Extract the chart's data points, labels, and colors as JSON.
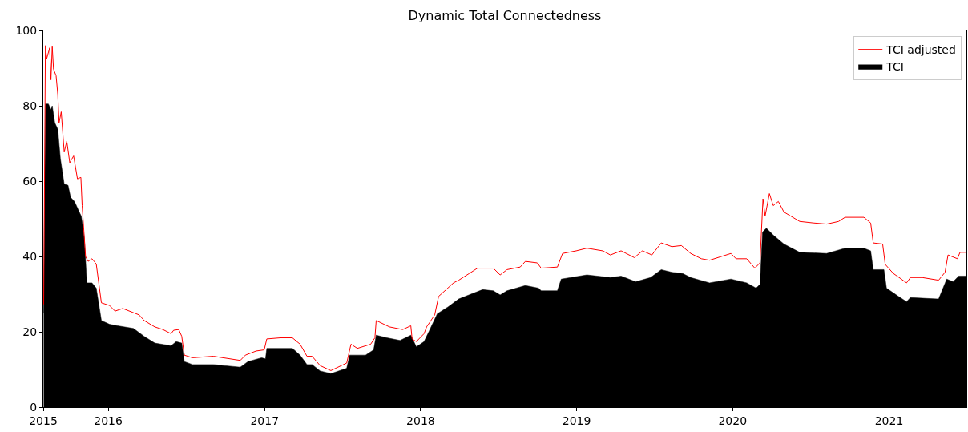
{
  "chart_data": {
    "type": "area",
    "title": "Dynamic Total Connectedness",
    "xlim": [
      "2015-08-02",
      "2021-07-01"
    ],
    "xticks": [
      {
        "value": "2015-08-02",
        "label": "2015"
      },
      {
        "value": "2016-01-01",
        "label": "2016"
      },
      {
        "value": "2017-01-01",
        "label": "2017"
      },
      {
        "value": "2018-01-01",
        "label": "2018"
      },
      {
        "value": "2019-01-01",
        "label": "2019"
      },
      {
        "value": "2020-01-01",
        "label": "2020"
      },
      {
        "value": "2021-01-01",
        "label": "2021"
      }
    ],
    "ylim": [
      0,
      100
    ],
    "yticks": [
      0,
      20,
      40,
      60,
      80,
      100
    ],
    "legend": "top right",
    "series": [
      {
        "name": "TCI adjusted",
        "type": "line",
        "color": "#ff0000",
        "line_style": "solid",
        "x": [
          "2015-08-03",
          "2015-08-07",
          "2015-08-10",
          "2015-08-17",
          "2015-08-20",
          "2015-08-23",
          "2015-08-26",
          "2015-09-01",
          "2015-09-05",
          "2015-09-08",
          "2015-09-13",
          "2015-09-20",
          "2015-09-26",
          "2015-10-03",
          "2015-10-12",
          "2015-10-21",
          "2015-10-29",
          "2015-11-01",
          "2015-11-09",
          "2015-11-15",
          "2015-11-24",
          "2015-12-04",
          "2015-12-16",
          "2016-01-04",
          "2016-01-17",
          "2016-02-04",
          "2016-03-13",
          "2016-03-25",
          "2016-04-19",
          "2016-05-08",
          "2016-05-27",
          "2016-06-02",
          "2016-06-14",
          "2016-06-21",
          "2016-06-27",
          "2016-07-16",
          "2016-09-03",
          "2016-11-05",
          "2016-11-17",
          "2016-12-12",
          "2016-12-31",
          "2017-01-06",
          "2017-02-07",
          "2017-03-07",
          "2017-03-25",
          "2017-04-10",
          "2017-04-22",
          "2017-05-11",
          "2017-06-05",
          "2017-07-12",
          "2017-07-22",
          "2017-08-06",
          "2017-09-06",
          "2017-09-16",
          "2017-09-19",
          "2017-10-20",
          "2017-11-20",
          "2017-12-09",
          "2017-12-12",
          "2017-12-22",
          "2018-01-09",
          "2018-01-15",
          "2018-02-03",
          "2018-02-12",
          "2018-03-19",
          "2018-03-31",
          "2018-04-25",
          "2018-05-14",
          "2018-06-20",
          "2018-07-06",
          "2018-07-22",
          "2018-08-22",
          "2018-09-03",
          "2018-10-01",
          "2018-10-10",
          "2018-11-17",
          "2018-11-29",
          "2018-12-31",
          "2019-01-25",
          "2019-03-03",
          "2019-03-21",
          "2019-04-15",
          "2019-05-16",
          "2019-06-04",
          "2019-06-26",
          "2019-07-18",
          "2019-08-12",
          "2019-09-03",
          "2019-09-25",
          "2019-10-20",
          "2019-11-08",
          "2019-12-28",
          "2020-01-09",
          "2020-02-03",
          "2020-02-22",
          "2020-03-05",
          "2020-03-12",
          "2020-03-17",
          "2020-03-27",
          "2020-04-05",
          "2020-04-17",
          "2020-04-30",
          "2020-06-06",
          "2020-07-08",
          "2020-08-08",
          "2020-09-05",
          "2020-09-20",
          "2020-11-03",
          "2020-11-19",
          "2020-11-25",
          "2020-12-17",
          "2020-12-23",
          "2021-01-11",
          "2021-02-11",
          "2021-02-20",
          "2021-03-20",
          "2021-04-27",
          "2021-05-12",
          "2021-05-19",
          "2021-06-10",
          "2021-06-16",
          "2021-07-01"
        ],
        "values": [
          27.3,
          96,
          92.5,
          95.4,
          86.9,
          95.7,
          89.7,
          88,
          83,
          75.5,
          78.4,
          67.7,
          70.6,
          64.9,
          66.7,
          60.6,
          61,
          53.5,
          40,
          38.7,
          39.4,
          38,
          27.7,
          27,
          25.5,
          26.2,
          24.5,
          23,
          21.3,
          20.6,
          19.5,
          20.4,
          20.6,
          18.8,
          13.8,
          13.1,
          13.5,
          12.4,
          13.8,
          14.9,
          15.2,
          18.1,
          18.4,
          18.4,
          16.7,
          13.5,
          13.5,
          11,
          9.7,
          11.7,
          16.7,
          15.6,
          16.7,
          18.4,
          23,
          21.3,
          20.6,
          21.6,
          18.1,
          17.4,
          19.5,
          21.3,
          24.5,
          29.4,
          33,
          33.7,
          35.5,
          36.9,
          36.9,
          35.1,
          36.5,
          37.2,
          38.7,
          38.3,
          36.9,
          37.2,
          40.8,
          41.5,
          42.2,
          41.5,
          40.4,
          41.5,
          39.7,
          41.5,
          40.4,
          43.6,
          42.6,
          42.9,
          40.8,
          39.4,
          39,
          40.8,
          39.4,
          39.4,
          36.9,
          38.3,
          55.3,
          50.7,
          56.7,
          53.5,
          54.6,
          51.8,
          49.3,
          48.9,
          48.6,
          49.3,
          50.4,
          50.4,
          48.9,
          43.6,
          43.3,
          37.9,
          35.5,
          33,
          34.4,
          34.4,
          33.7,
          35.8,
          40.4,
          39.4,
          41.1,
          41.1
        ]
      },
      {
        "name": "TCI",
        "color": "#000000",
        "x": [
          "2015-08-03",
          "2015-08-07",
          "2015-08-14",
          "2015-08-20",
          "2015-08-23",
          "2015-08-29",
          "2015-09-05",
          "2015-09-11",
          "2015-09-20",
          "2015-09-29",
          "2015-10-05",
          "2015-10-14",
          "2015-10-27",
          "2015-10-30",
          "2015-11-06",
          "2015-11-12",
          "2015-11-24",
          "2015-12-04",
          "2015-12-16",
          "2016-01-04",
          "2016-01-23",
          "2016-02-29",
          "2016-03-25",
          "2016-04-19",
          "2016-05-27",
          "2016-06-08",
          "2016-06-21",
          "2016-06-27",
          "2016-07-16",
          "2016-09-03",
          "2016-11-05",
          "2016-11-23",
          "2016-12-25",
          "2017-01-03",
          "2017-01-06",
          "2017-03-07",
          "2017-03-25",
          "2017-04-10",
          "2017-04-22",
          "2017-05-11",
          "2017-06-05",
          "2017-07-12",
          "2017-07-19",
          "2017-08-25",
          "2017-09-13",
          "2017-09-19",
          "2017-10-14",
          "2017-11-14",
          "2017-12-09",
          "2017-12-22",
          "2018-01-09",
          "2018-01-21",
          "2018-02-09",
          "2018-03-06",
          "2018-03-31",
          "2018-05-01",
          "2018-05-26",
          "2018-06-20",
          "2018-07-06",
          "2018-07-22",
          "2018-09-03",
          "2018-10-04",
          "2018-10-10",
          "2018-11-17",
          "2018-11-26",
          "2019-01-25",
          "2019-03-21",
          "2019-04-15",
          "2019-05-19",
          "2019-06-23",
          "2019-07-18",
          "2019-08-12",
          "2019-09-06",
          "2019-09-25",
          "2019-11-08",
          "2019-12-28",
          "2020-02-03",
          "2020-02-25",
          "2020-03-05",
          "2020-03-11",
          "2020-03-20",
          "2020-04-05",
          "2020-04-30",
          "2020-06-06",
          "2020-08-08",
          "2020-09-20",
          "2020-11-03",
          "2020-11-19",
          "2020-11-25",
          "2020-12-20",
          "2020-12-26",
          "2021-01-23",
          "2021-02-11",
          "2021-02-20",
          "2021-04-27",
          "2021-05-16",
          "2021-05-31",
          "2021-06-13",
          "2021-07-01"
        ],
        "values": [
          25,
          80.5,
          80.5,
          79,
          80,
          75.5,
          73.8,
          66,
          59.2,
          58.9,
          55.7,
          54.6,
          51.4,
          50.7,
          45,
          33,
          33,
          31.6,
          23,
          22,
          21.6,
          20.9,
          18.8,
          17,
          16.3,
          17.4,
          17,
          12.1,
          11.3,
          11.3,
          10.6,
          12.1,
          13.1,
          12.8,
          15.6,
          15.6,
          13.8,
          11.3,
          11.3,
          9.6,
          8.9,
          10.3,
          13.8,
          13.8,
          15.2,
          19.1,
          18.4,
          17.7,
          19.1,
          16,
          17.4,
          20.2,
          24.8,
          26.6,
          28.7,
          30.1,
          31.2,
          30.9,
          29.8,
          30.9,
          32.3,
          31.6,
          30.9,
          30.9,
          34,
          35.1,
          34.4,
          34.8,
          33.3,
          34.4,
          36.5,
          35.8,
          35.5,
          34.4,
          33,
          34,
          33,
          31.6,
          32.6,
          46.5,
          47.5,
          45.7,
          43.3,
          41.1,
          40.8,
          42.2,
          42.2,
          41.5,
          36.5,
          36.5,
          31.6,
          29.4,
          28,
          29.1,
          28.7,
          34,
          33.3,
          34.8,
          34.8
        ]
      }
    ]
  }
}
